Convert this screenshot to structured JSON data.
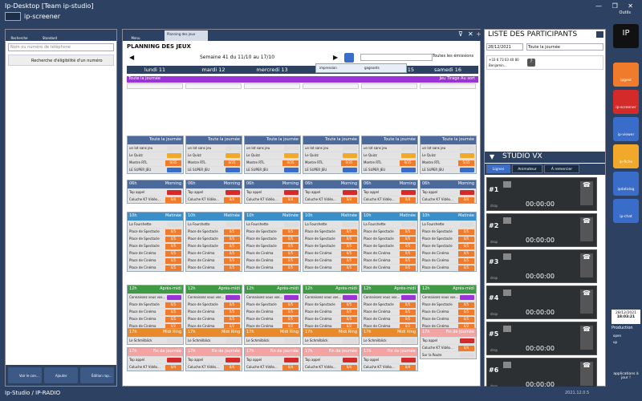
{
  "window": {
    "title": "Ip-Desktop [Team ip-studio]",
    "sub": "ip-screener",
    "tools": "Outils"
  },
  "left": {
    "tab_recherche": "Recherche",
    "tab_standard": "Standard",
    "search_placeholder": "Nom ou numéro de téléphone",
    "elig": "Recherche d'éligibilité d'un numéro",
    "btn1": "Voir le con...",
    "btn2": "Ajouter",
    "btn3": "Édition rap..."
  },
  "center": {
    "menu": "Menu",
    "tab": "Planning des jeux",
    "title": "PLANNING DES JEUX",
    "week": "Semaine 41 du 11/10 au 17/10",
    "filter": "Toutes les émissions",
    "days": [
      "lundi 11",
      "mardi 12",
      "mercredi 13",
      "jeudi 14",
      "15",
      "samedi 16"
    ],
    "allday": "Toute la journée",
    "allday_right": "Jeu Tirage Au sort",
    "dropdown": {
      "a": "impression",
      "b": "gagnants"
    }
  },
  "blocks": {
    "toute": "Toute la journée",
    "h06": "06h",
    "morning": "Morning",
    "h10": "10h",
    "matinee": "Matinée",
    "h12": "12h",
    "apres": "Après-midi",
    "h17": "17h",
    "midi": "Midi Ring",
    "fin": "Fin de journée",
    "r1": "un lot sans jeu",
    "r2": "Le Quizz",
    "r3": "Montre RTL",
    "r4": "LE SUPER JEU",
    "r5": "Top appel",
    "r6": "Coluche K7 Vidéo...",
    "r7": "La Fourchette",
    "r8": "Place de Spectacle",
    "r9": "Place de Cinéma",
    "r10": "Connaissez vous vos...",
    "r11": "Le Schmilblick",
    "r12": "Sur la Route",
    "b1": "0/35",
    "b2": "5/35",
    "b3": "0/4",
    "b4": "0/5",
    "b5": "0/2"
  },
  "participants": {
    "title": "LISTE DES PARTICIPANTS",
    "date": "28/12/2021",
    "range": "Toute la journée",
    "phone": "+33 6 73 03 40 80",
    "name": "Benjamin..."
  },
  "studio": {
    "title": "STUDIO VX",
    "tab1": "Lignes",
    "tab2": "Animateur",
    "tab3": "À remercier",
    "lines": [
      "#1",
      "#2",
      "#3",
      "#4",
      "#5",
      "#6"
    ],
    "timer": "00:00:00",
    "drop": "drop"
  },
  "sidebar": {
    "items": [
      "ipgest",
      "ip-screener",
      "ip-viewer",
      "ip-fiche",
      "ipdatalog",
      "ip-chat"
    ],
    "date": "28/12/2021",
    "time": "18:03:21",
    "production": "Production",
    "open": "open",
    "up": "up",
    "apps": "applications à jour !"
  },
  "status": {
    "left": "Ip-Studio / IP-RADIO",
    "version": "2021.12.0.5"
  },
  "colors": {
    "accent": "#2d4263",
    "orange": "#f07b2a",
    "purple": "#9b33d6"
  }
}
